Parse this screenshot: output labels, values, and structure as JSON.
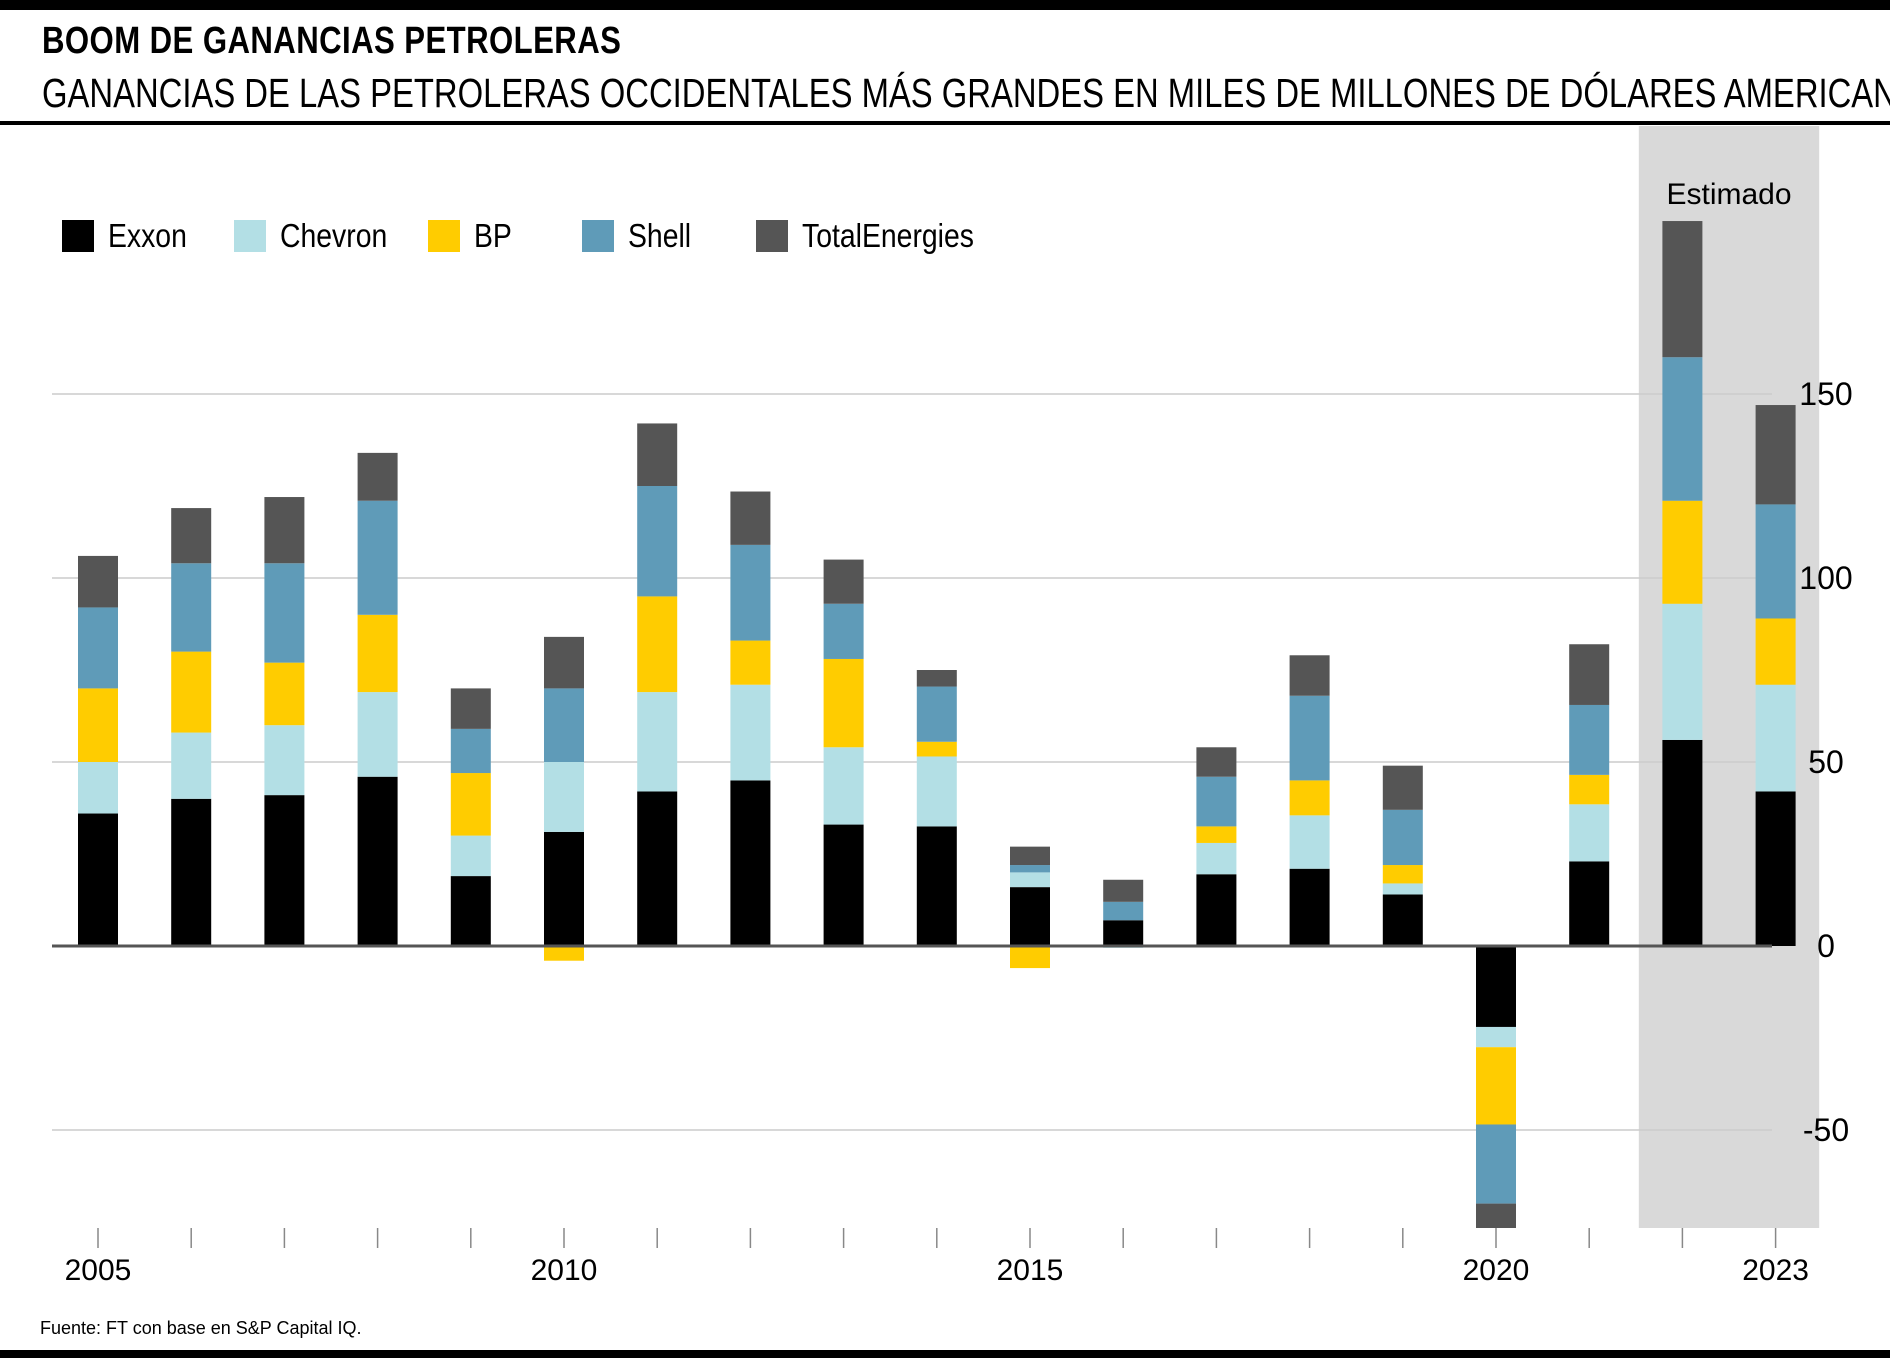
{
  "header": {
    "title": "BOOM DE GANANCIAS PETROLERAS",
    "subtitle": "GANANCIAS DE LAS PETROLERAS OCCIDENTALES MÁS GRANDES EN MILES DE MILLONES DE DÓLARES AMERICANOS"
  },
  "footer": {
    "source": "Fuente: FT con base en S&P Capital IQ."
  },
  "colors": {
    "Exxon": "#000000",
    "Chevron": "#b3dfe5",
    "BP": "#ffcc00",
    "Shell": "#5f9bb8",
    "TotalEnergies": "#555555",
    "estimate_shade": "#d9d9d9",
    "gridline": "#cccccc",
    "zero_line": "#555555"
  },
  "chart_data": {
    "type": "bar",
    "stacked": true,
    "title": "BOOM DE GANANCIAS PETROLERAS",
    "subtitle": "GANANCIAS DE LAS PETROLERAS OCCIDENTALES MÁS GRANDES EN MILES DE MILLONES DE DÓLARES AMERICANOS",
    "x": [
      2005,
      2006,
      2007,
      2008,
      2009,
      2010,
      2011,
      2012,
      2013,
      2014,
      2015,
      2016,
      2017,
      2018,
      2019,
      2020,
      2021,
      2022,
      2023
    ],
    "x_tick_labels": [
      "2005",
      "2010",
      "2015",
      "2020",
      "2023"
    ],
    "y_ticks": [
      150,
      100,
      50,
      0,
      -50
    ],
    "ylim": [
      -76,
      200
    ],
    "grid": true,
    "legend_position": "top-left",
    "shaded_region": {
      "label": "Estimado",
      "years": [
        2022,
        2023
      ]
    },
    "series": [
      {
        "name": "Exxon",
        "values": [
          36,
          40,
          41,
          46,
          19,
          31,
          42,
          45,
          33,
          32.5,
          16,
          7,
          19.5,
          21,
          14,
          -22,
          23,
          56,
          42
        ]
      },
      {
        "name": "Chevron",
        "values": [
          14,
          18,
          19,
          23,
          11,
          19,
          27,
          26,
          21,
          19,
          4,
          -0.5,
          8.5,
          14.5,
          3,
          -5.5,
          15.5,
          37,
          29
        ]
      },
      {
        "name": "BP",
        "values": [
          20,
          22,
          17,
          21,
          17,
          -4,
          26,
          12,
          24,
          4,
          -6,
          0,
          4.5,
          9.5,
          5,
          -21,
          8,
          28,
          18
        ]
      },
      {
        "name": "Shell",
        "values": [
          22,
          24,
          27,
          31,
          12,
          20,
          30,
          26,
          15,
          15,
          2,
          5,
          13.5,
          23,
          15,
          -21.5,
          19,
          39,
          31
        ]
      },
      {
        "name": "TotalEnergies",
        "values": [
          14,
          15,
          18,
          13,
          11,
          14,
          17,
          14.5,
          12,
          4.5,
          5,
          6,
          8,
          11,
          12,
          -7,
          16.5,
          37,
          27
        ]
      }
    ]
  }
}
